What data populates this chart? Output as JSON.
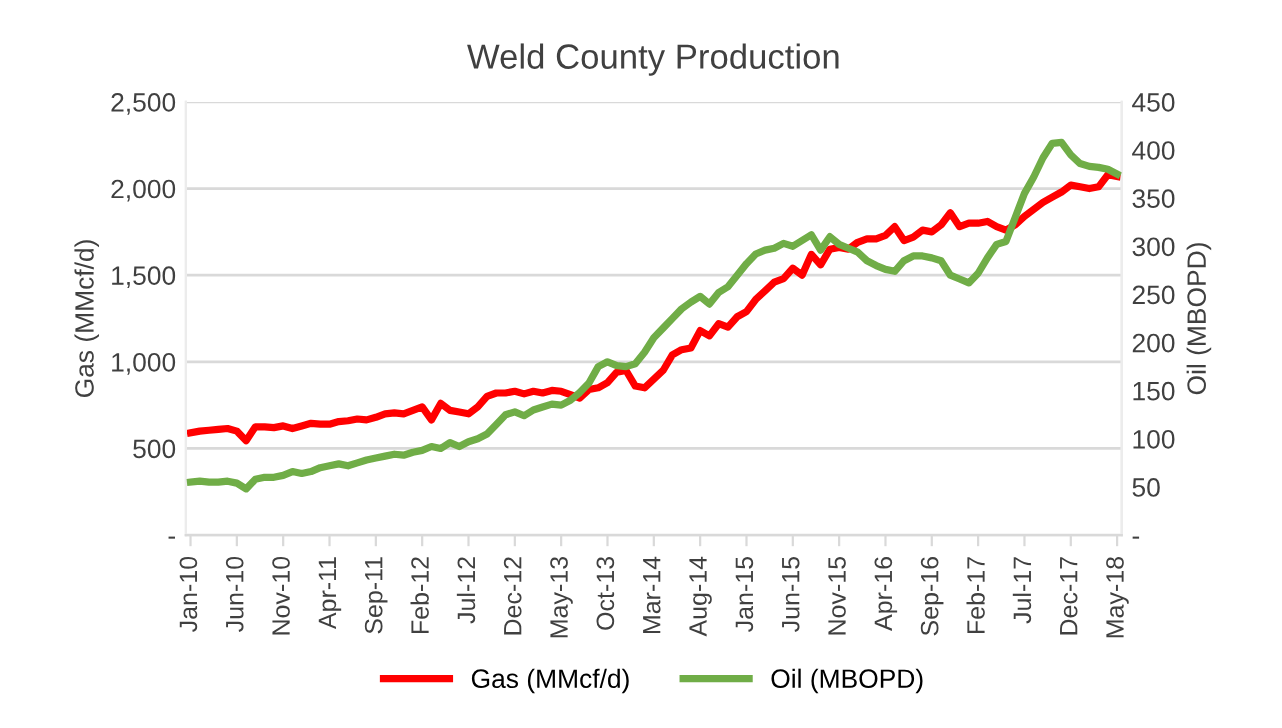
{
  "chart_data": {
    "type": "line",
    "title": "Weld County Production",
    "ylabel": "Gas (MMcf/d)",
    "y2label": "Oil (MBOPD)",
    "categories": [
      "Jan-10",
      null,
      null,
      null,
      null,
      "Jun-10",
      null,
      null,
      null,
      null,
      "Nov-10",
      null,
      null,
      null,
      null,
      "Apr-11",
      null,
      null,
      null,
      null,
      "Sep-11",
      null,
      null,
      null,
      null,
      "Feb-12",
      null,
      null,
      null,
      null,
      "Jul-12",
      null,
      null,
      null,
      null,
      "Dec-12",
      null,
      null,
      null,
      null,
      "May-13",
      null,
      null,
      null,
      null,
      "Oct-13",
      null,
      null,
      null,
      null,
      "Mar-14",
      null,
      null,
      null,
      null,
      "Aug-14",
      null,
      null,
      null,
      null,
      "Jan-15",
      null,
      null,
      null,
      null,
      "Jun-15",
      null,
      null,
      null,
      null,
      "Nov-15",
      null,
      null,
      null,
      null,
      "Apr-16",
      null,
      null,
      null,
      null,
      "Sep-16",
      null,
      null,
      null,
      null,
      "Feb-17",
      null,
      null,
      null,
      null,
      "Jul-17",
      null,
      null,
      null,
      null,
      "Dec-17",
      null,
      null,
      null,
      null,
      "May-18"
    ],
    "series": [
      {
        "name": "Gas (MMcf/d)",
        "color": "#ff0000",
        "values": [
          590,
          600,
          605,
          610,
          615,
          600,
          545,
          625,
          625,
          620,
          630,
          615,
          630,
          645,
          640,
          640,
          655,
          660,
          670,
          665,
          680,
          700,
          705,
          700,
          720,
          740,
          665,
          760,
          720,
          710,
          700,
          740,
          800,
          820,
          820,
          830,
          815,
          830,
          820,
          835,
          830,
          810,
          790,
          840,
          850,
          880,
          940,
          950,
          860,
          850,
          900,
          950,
          1040,
          1070,
          1080,
          1180,
          1150,
          1220,
          1200,
          1260,
          1290,
          1360,
          1410,
          1460,
          1480,
          1540,
          1500,
          1620,
          1560,
          1650,
          1660,
          1650,
          1690,
          1710,
          1710,
          1730,
          1780,
          1700,
          1720,
          1760,
          1750,
          1790,
          1860,
          1780,
          1800,
          1800,
          1810,
          1780,
          1760,
          1790,
          1840,
          1880,
          1920,
          1950,
          1980,
          2020,
          2010,
          2000,
          2010,
          2080,
          2070
        ]
      },
      {
        "name": "Oil (MBOPD)",
        "color": "#70ad47",
        "axis": "y2",
        "values": [
          55,
          56,
          55,
          55,
          56,
          54,
          48,
          58,
          60,
          60,
          62,
          66,
          64,
          66,
          70,
          72,
          74,
          72,
          75,
          78,
          80,
          82,
          84,
          83,
          86,
          88,
          92,
          90,
          96,
          92,
          97,
          100,
          105,
          115,
          125,
          128,
          124,
          130,
          133,
          136,
          135,
          140,
          148,
          158,
          175,
          180,
          176,
          175,
          178,
          190,
          205,
          215,
          225,
          235,
          242,
          248,
          240,
          252,
          258,
          270,
          282,
          292,
          296,
          298,
          303,
          300,
          306,
          312,
          296,
          310,
          302,
          298,
          294,
          285,
          280,
          276,
          274,
          285,
          290,
          290,
          288,
          285,
          270,
          266,
          262,
          272,
          288,
          302,
          305,
          330,
          355,
          372,
          392,
          407,
          408,
          395,
          386,
          383,
          382,
          380,
          375
        ]
      }
    ],
    "ylim": [
      0,
      2500
    ],
    "yticks": [
      {
        "value": 0,
        "label": "-"
      },
      {
        "value": 500,
        "label": "500"
      },
      {
        "value": 1000,
        "label": "1,000"
      },
      {
        "value": 1500,
        "label": "1,500"
      },
      {
        "value": 2000,
        "label": "2,000"
      },
      {
        "value": 2500,
        "label": "2,500"
      }
    ],
    "y2lim": [
      0,
      450
    ],
    "y2ticks": [
      {
        "value": 0,
        "label": "-"
      },
      50,
      100,
      150,
      200,
      250,
      300,
      350,
      400,
      450
    ],
    "grid": "y",
    "legend": "bottom",
    "line_style": "solid",
    "marker": "none"
  }
}
